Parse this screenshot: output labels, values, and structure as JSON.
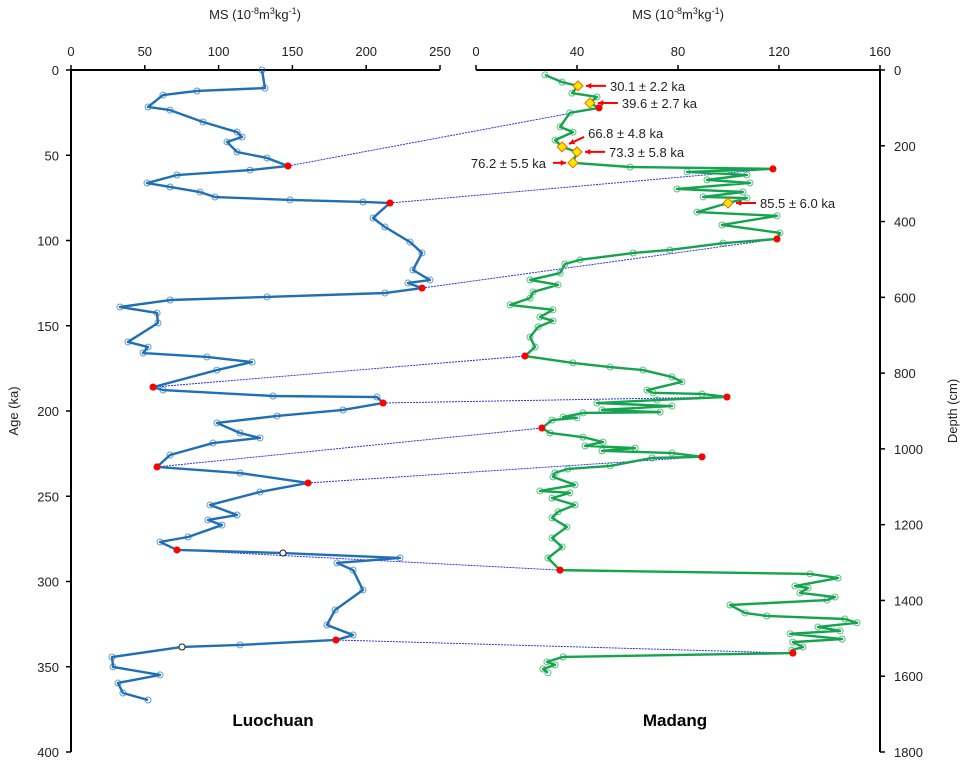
{
  "chart_data": [
    {
      "type": "line",
      "panel": "left",
      "site_label": "Luochuan",
      "xlabel": "MS (10-8m3kg-1)",
      "xlabel_parts": {
        "base": "MS (10",
        "exp1": "-8",
        "mid": "m",
        "exp2": "3",
        "mid2": "kg",
        "exp3": "-1",
        "end": ")"
      },
      "ylabel": "Age (ka)",
      "xlim": [
        0,
        250
      ],
      "ylim": [
        0,
        400
      ],
      "y_inverted": true,
      "x_axis_position": "top",
      "xticks": [
        "0",
        "50",
        "100",
        "150",
        "200",
        "250"
      ],
      "yticks": [
        "0",
        "50",
        "100",
        "150",
        "200",
        "250",
        "300",
        "350",
        "400"
      ],
      "grid": false,
      "line_color": "#1f6fb5",
      "series": [
        {
          "points": [
            [
              129.4,
              0
            ],
            [
              131.4,
              10.6
            ],
            [
              85.4,
              12.3
            ],
            [
              62.3,
              14.7
            ],
            [
              52.2,
              21.7
            ],
            [
              67.1,
              23.5
            ],
            [
              89.4,
              30.5
            ],
            [
              112.5,
              36.4
            ],
            [
              115.9,
              39.3
            ],
            [
              105.7,
              42.2
            ],
            [
              112.5,
              48.1
            ],
            [
              132.8,
              51.6
            ],
            [
              147,
              56.3
            ],
            [
              121.3,
              58.7
            ],
            [
              71.8,
              61.6
            ],
            [
              51.5,
              66.3
            ],
            [
              67.1,
              68.6
            ],
            [
              87.4,
              71.6
            ],
            [
              97.6,
              74.5
            ],
            [
              148.4,
              76.2
            ],
            [
              197.8,
              77.4
            ],
            [
              216.1,
              78
            ],
            [
              204.6,
              86.8
            ],
            [
              212.7,
              92.1
            ],
            [
              229.7,
              100.9
            ],
            [
              237.8,
              107.3
            ],
            [
              231.7,
              117.3
            ],
            [
              243.2,
              123.2
            ],
            [
              228.3,
              124.9
            ],
            [
              237.8,
              127.9
            ],
            [
              212.7,
              130.8
            ],
            [
              132.8,
              133.1
            ],
            [
              67.1,
              134.9
            ],
            [
              33.2,
              139
            ],
            [
              58.3,
              142.5
            ],
            [
              58.9,
              148.4
            ],
            [
              38.6,
              159.5
            ],
            [
              52.2,
              162.5
            ],
            [
              48.8,
              166
            ],
            [
              92.1,
              168.3
            ],
            [
              122.6,
              171.3
            ],
            [
              98.9,
              176
            ],
            [
              55.6,
              186
            ],
            [
              62.3,
              187.7
            ],
            [
              136.9,
              191.2
            ],
            [
              207.3,
              191.8
            ],
            [
              211.4,
              195.3
            ],
            [
              184.3,
              199.4
            ],
            [
              139.6,
              202.9
            ],
            [
              98.9,
              207
            ],
            [
              114.5,
              212.9
            ],
            [
              128,
              215.8
            ],
            [
              96.2,
              218.8
            ],
            [
              67.1,
              225.8
            ],
            [
              58.3,
              232.8
            ],
            [
              114.5,
              236.4
            ],
            [
              160.6,
              242.2
            ],
            [
              128,
              247.5
            ],
            [
              94.2,
              255.1
            ],
            [
              112.5,
              261
            ],
            [
              92.8,
              263.9
            ],
            [
              102.3,
              266.9
            ],
            [
              79.3,
              273.9
            ],
            [
              60.3,
              276.8
            ],
            [
              71.8,
              281.5
            ],
            [
              143.6,
              283.3
            ],
            [
              222.9,
              286.2
            ],
            [
              180.2,
              289.1
            ],
            [
              191.1,
              293.3
            ],
            [
              197.8,
              305
            ],
            [
              178.9,
              316.7
            ],
            [
              173.4,
              325.5
            ],
            [
              191.1,
              331.4
            ],
            [
              179.5,
              334.3
            ],
            [
              114.5,
              337.2
            ],
            [
              75.2,
              338.4
            ],
            [
              27.8,
              344.3
            ],
            [
              28.5,
              350.1
            ],
            [
              60.3,
              354.8
            ],
            [
              31.8,
              359.5
            ],
            [
              35.2,
              365.4
            ],
            [
              52.2,
              369.5
            ]
          ]
        }
      ],
      "tie_points": [
        [
          147,
          56.3
        ],
        [
          216.1,
          78
        ],
        [
          237.8,
          127.9
        ],
        [
          55.6,
          186
        ],
        [
          211.4,
          195.3
        ],
        [
          58.3,
          232.8
        ],
        [
          160.6,
          242.2
        ],
        [
          71.8,
          281.5
        ],
        [
          179.5,
          334.3
        ]
      ],
      "hollow_points": [
        [
          143.6,
          283.3
        ],
        [
          75.2,
          338.4
        ]
      ]
    },
    {
      "type": "line",
      "panel": "right",
      "site_label": "Madang",
      "xlabel": "MS (10-8m3kg-1)",
      "xlabel_parts": {
        "base": "MS (10",
        "exp1": "-8",
        "mid": "m",
        "exp2": "3",
        "mid2": "kg",
        "exp3": "-1",
        "end": ")"
      },
      "ylabel": "Depth (cm)",
      "xlim": [
        0,
        160
      ],
      "ylim": [
        0,
        1800
      ],
      "y_inverted": true,
      "x_axis_position": "top",
      "y_axis_position": "right",
      "xticks": [
        "0",
        "40",
        "80",
        "120",
        "160"
      ],
      "yticks": [
        "0",
        "200",
        "400",
        "600",
        "800",
        "1000",
        "1200",
        "1400",
        "1600",
        "1800"
      ],
      "grid": false,
      "line_color": "#14a44d",
      "series": [
        {
          "points": [
            [
              27.3,
              13
            ],
            [
              34.1,
              32
            ],
            [
              40.4,
              42
            ],
            [
              38.0,
              61
            ],
            [
              47.9,
              71
            ],
            [
              45.1,
              87
            ],
            [
              48.7,
              100
            ],
            [
              37.2,
              113
            ],
            [
              33.3,
              150
            ],
            [
              38.4,
              164
            ],
            [
              31.3,
              185
            ],
            [
              34.1,
              203
            ],
            [
              40.0,
              216
            ],
            [
              38.4,
              245
            ],
            [
              61.0,
              256
            ],
            [
              117.6,
              261
            ],
            [
              83.6,
              269
            ],
            [
              107.3,
              277
            ],
            [
              91.5,
              290
            ],
            [
              108.5,
              298
            ],
            [
              79.6,
              314
            ],
            [
              105.7,
              322
            ],
            [
              89.9,
              335
            ],
            [
              107.3,
              338
            ],
            [
              99.8,
              351
            ],
            [
              87.5,
              375
            ],
            [
              119.2,
              385
            ],
            [
              97.4,
              409
            ],
            [
              120.4,
              430
            ],
            [
              119.2,
              446
            ],
            [
              97.8,
              457
            ],
            [
              76.8,
              475
            ],
            [
              62.2,
              483
            ],
            [
              41.2,
              501
            ],
            [
              35.2,
              512
            ],
            [
              33.3,
              536
            ],
            [
              21.4,
              554
            ],
            [
              32.5,
              567
            ],
            [
              22.6,
              586
            ],
            [
              21.4,
              602
            ],
            [
              13.5,
              620
            ],
            [
              30.5,
              633
            ],
            [
              25.3,
              652
            ],
            [
              30.5,
              662
            ],
            [
              24.6,
              678
            ],
            [
              21.4,
              705
            ],
            [
              23.4,
              731
            ],
            [
              19.4,
              755
            ],
            [
              38.4,
              773
            ],
            [
              53.1,
              784
            ],
            [
              66.1,
              792
            ],
            [
              77.6,
              810
            ],
            [
              81.6,
              823
            ],
            [
              67.7,
              845
            ],
            [
              70.1,
              852
            ],
            [
              89.5,
              855
            ],
            [
              99.4,
              863
            ],
            [
              71.7,
              871
            ],
            [
              47.9,
              879
            ],
            [
              77.6,
              887
            ],
            [
              49.9,
              897
            ],
            [
              72.9,
              903
            ],
            [
              42.4,
              905
            ],
            [
              34.5,
              916
            ],
            [
              40.0,
              918
            ],
            [
              30.1,
              924
            ],
            [
              26.1,
              945
            ],
            [
              29.3,
              958
            ],
            [
              42.4,
              969
            ],
            [
              50.3,
              982
            ],
            [
              43.2,
              992
            ],
            [
              63.0,
              998
            ],
            [
              49.9,
              1005
            ],
            [
              77.6,
              1011
            ],
            [
              89.5,
              1021
            ],
            [
              69.7,
              1024
            ],
            [
              53.1,
              1045
            ],
            [
              36.4,
              1053
            ],
            [
              31.3,
              1063
            ],
            [
              30.5,
              1074
            ],
            [
              39.2,
              1095
            ],
            [
              25.3,
              1111
            ],
            [
              37.2,
              1116
            ],
            [
              30.1,
              1130
            ],
            [
              39.2,
              1148
            ],
            [
              32.5,
              1166
            ],
            [
              30.1,
              1182
            ],
            [
              36.0,
              1206
            ],
            [
              30.1,
              1235
            ],
            [
              34.1,
              1259
            ],
            [
              28.5,
              1288
            ],
            [
              33.3,
              1320
            ],
            [
              132.3,
              1330
            ],
            [
              143.4,
              1341
            ],
            [
              126.3,
              1362
            ],
            [
              131.5,
              1367
            ],
            [
              128.3,
              1380
            ],
            [
              142.2,
              1391
            ],
            [
              139.0,
              1399
            ],
            [
              100.6,
              1412
            ],
            [
              106.5,
              1433
            ],
            [
              115.2,
              1441
            ],
            [
              146.1,
              1449
            ],
            [
              150.9,
              1459
            ],
            [
              135.4,
              1470
            ],
            [
              144.2,
              1480
            ],
            [
              124.4,
              1488
            ],
            [
              145.0,
              1502
            ],
            [
              125.5,
              1510
            ],
            [
              129.5,
              1523
            ],
            [
              125.1,
              1531
            ],
            [
              125.5,
              1539
            ],
            [
              34.5,
              1549
            ],
            [
              28.1,
              1562
            ],
            [
              31.3,
              1570
            ],
            [
              26.5,
              1581
            ],
            [
              28.5,
              1591
            ]
          ]
        }
      ],
      "tie_points": [
        [
          48.7,
          100
        ],
        [
          117.6,
          261
        ],
        [
          119.2,
          446
        ],
        [
          19.4,
          755
        ],
        [
          99.4,
          863
        ],
        [
          26.1,
          945
        ],
        [
          89.5,
          1021
        ],
        [
          33.3,
          1320
        ],
        [
          125.5,
          1539
        ]
      ],
      "dated_samples": [
        {
          "ms": 40.4,
          "depth": 42,
          "label": "30.1 ± 2.2 ka",
          "label_side": "right"
        },
        {
          "ms": 45.1,
          "depth": 87,
          "label": "39.6 ± 2.7 ka",
          "label_side": "right"
        },
        {
          "ms": 34.1,
          "depth": 203,
          "label": "66.8 ± 4.8 ka",
          "label_side": "upper-right"
        },
        {
          "ms": 40.0,
          "depth": 216,
          "label": "73.3 ± 5.8 ka",
          "label_side": "right"
        },
        {
          "ms": 38.4,
          "depth": 245,
          "label": "76.2 ± 5.5 ka",
          "label_side": "left"
        },
        {
          "ms": 99.8,
          "depth": 351,
          "label": "85.5 ± 6.0 ka",
          "label_side": "right"
        }
      ]
    }
  ],
  "colors": {
    "tie_line": "#1a1aff",
    "tie_point": "#ff0000",
    "dated_marker_fill": "#ffe600",
    "dated_marker_stroke": "#e07000",
    "arrow": "#ff0000"
  }
}
